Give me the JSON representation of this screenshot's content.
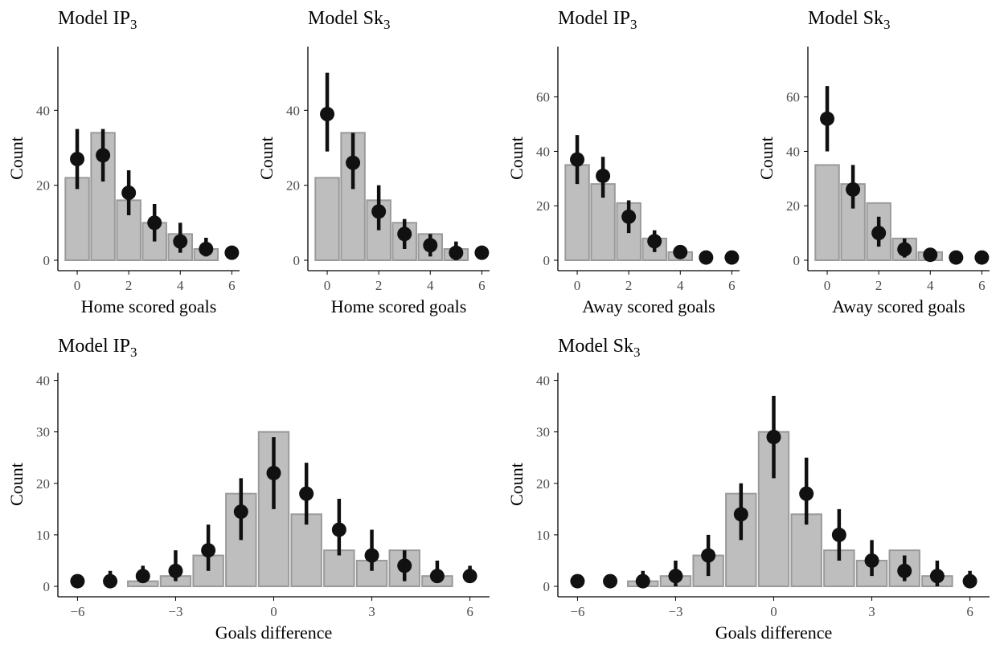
{
  "colors": {
    "bar_fill": "#bebebe",
    "bar_stroke": "#9a9a9a",
    "point": "#111111",
    "tick_text": "#4d4d4d"
  },
  "chart_data": [
    {
      "type": "bar",
      "title": "Model IP",
      "title_subscript": "3",
      "xlabel": "Home scored goals",
      "ylabel": "Count",
      "x_ticks": [
        0,
        2,
        4,
        6
      ],
      "y_ticks": [
        0,
        20,
        40
      ],
      "xlim": [
        -0.75,
        6.3
      ],
      "ylim": [
        0,
        57
      ],
      "bars": {
        "x": [
          0,
          1,
          2,
          3,
          4,
          5
        ],
        "values": [
          22,
          34,
          16,
          10,
          7,
          3
        ]
      },
      "points": {
        "x": [
          0,
          1,
          2,
          3,
          4,
          5,
          6
        ],
        "values": [
          27,
          28,
          18,
          10,
          5,
          3,
          2
        ],
        "lower": [
          19,
          21,
          12,
          5,
          2,
          1,
          2
        ],
        "upper": [
          35,
          35,
          24,
          15,
          10,
          6,
          2
        ]
      }
    },
    {
      "type": "bar",
      "title": "Model Sk",
      "title_subscript": "3",
      "xlabel": "Home scored goals",
      "ylabel": "Count",
      "x_ticks": [
        0,
        2,
        4,
        6
      ],
      "y_ticks": [
        0,
        20,
        40
      ],
      "xlim": [
        -0.75,
        6.3
      ],
      "ylim": [
        0,
        57
      ],
      "bars": {
        "x": [
          0,
          1,
          2,
          3,
          4,
          5
        ],
        "values": [
          22,
          34,
          16,
          10,
          7,
          3
        ]
      },
      "points": {
        "x": [
          0,
          1,
          2,
          3,
          4,
          5,
          6
        ],
        "values": [
          39,
          26,
          13,
          7,
          4,
          2,
          2
        ],
        "lower": [
          29,
          19,
          8,
          3,
          1,
          0,
          2
        ],
        "upper": [
          50,
          34,
          20,
          11,
          7,
          5,
          2
        ]
      }
    },
    {
      "type": "bar",
      "title": "Model IP",
      "title_subscript": "3",
      "xlabel": "Away scored goals",
      "ylabel": "Count",
      "x_ticks": [
        0,
        2,
        4,
        6
      ],
      "y_ticks": [
        0,
        20,
        40,
        60
      ],
      "xlim": [
        -0.75,
        6.3
      ],
      "ylim": [
        0,
        78.5
      ],
      "bars": {
        "x": [
          0,
          1,
          2,
          3,
          4
        ],
        "values": [
          35,
          28,
          21,
          8,
          3
        ]
      },
      "points": {
        "x": [
          0,
          1,
          2,
          3,
          4,
          5,
          6
        ],
        "values": [
          37,
          31,
          16,
          7,
          3,
          1,
          1
        ],
        "lower": [
          28,
          23,
          10,
          3,
          1,
          1,
          1
        ],
        "upper": [
          46,
          38,
          22,
          11,
          5,
          1,
          1
        ]
      }
    },
    {
      "type": "bar",
      "title": "Model Sk",
      "title_subscript": "3",
      "xlabel": "Away scored goals",
      "ylabel": "Count",
      "x_ticks": [
        0,
        2,
        4,
        6
      ],
      "y_ticks": [
        0,
        20,
        40,
        60
      ],
      "xlim": [
        -0.75,
        6.3
      ],
      "ylim": [
        0,
        78.5
      ],
      "bars": {
        "x": [
          0,
          1,
          2,
          3,
          4
        ],
        "values": [
          35,
          28,
          21,
          8,
          3
        ]
      },
      "points": {
        "x": [
          0,
          1,
          2,
          3,
          4,
          5,
          6
        ],
        "values": [
          52,
          26,
          10,
          4,
          2,
          1,
          1
        ],
        "lower": [
          40,
          19,
          5,
          1,
          1,
          1,
          1
        ],
        "upper": [
          64,
          35,
          16,
          8,
          4,
          1,
          1
        ]
      }
    },
    {
      "type": "bar",
      "title": "Model IP",
      "title_subscript": "3",
      "xlabel": "Goals difference",
      "ylabel": "Count",
      "x_ticks": [
        -6,
        -3,
        0,
        3,
        6
      ],
      "x_tick_labels": [
        "−6",
        "−3",
        "0",
        "3",
        "6"
      ],
      "y_ticks": [
        0,
        10,
        20,
        30,
        40
      ],
      "xlim": [
        -6.6,
        6.6
      ],
      "ylim": [
        0,
        41.5
      ],
      "bars": {
        "x": [
          -4,
          -3,
          -2,
          -1,
          0,
          1,
          2,
          3,
          4,
          5
        ],
        "values": [
          1,
          2,
          6,
          18,
          30,
          14,
          7,
          5,
          7,
          2
        ]
      },
      "points": {
        "x": [
          -6,
          -5,
          -4,
          -3,
          -2,
          -1,
          0,
          1,
          2,
          3,
          4,
          5,
          6
        ],
        "values": [
          1,
          1,
          2,
          3,
          7,
          14.5,
          22,
          18,
          11,
          6,
          4,
          2,
          2
        ],
        "lower": [
          1,
          0,
          1,
          1,
          3,
          9,
          15,
          12,
          6,
          3,
          1,
          1,
          1
        ],
        "upper": [
          1,
          3,
          4,
          7,
          12,
          21,
          29,
          24,
          17,
          11,
          7,
          5,
          4
        ]
      }
    },
    {
      "type": "bar",
      "title": "Model Sk",
      "title_subscript": "3",
      "xlabel": "Goals difference",
      "ylabel": "Count",
      "x_ticks": [
        -6,
        -3,
        0,
        3,
        6
      ],
      "x_tick_labels": [
        "−6",
        "−3",
        "0",
        "3",
        "6"
      ],
      "y_ticks": [
        0,
        10,
        20,
        30,
        40
      ],
      "xlim": [
        -6.6,
        6.6
      ],
      "ylim": [
        0,
        41.5
      ],
      "bars": {
        "x": [
          -4,
          -3,
          -2,
          -1,
          0,
          1,
          2,
          3,
          4,
          5
        ],
        "values": [
          1,
          2,
          6,
          18,
          30,
          14,
          7,
          5,
          7,
          2
        ]
      },
      "points": {
        "x": [
          -6,
          -5,
          -4,
          -3,
          -2,
          -1,
          0,
          1,
          2,
          3,
          4,
          5,
          6
        ],
        "values": [
          1,
          1,
          1,
          2,
          6,
          14,
          29,
          18,
          10,
          5,
          3,
          2,
          1
        ],
        "lower": [
          1,
          1,
          0,
          0,
          2,
          9,
          21,
          12,
          5,
          2,
          1,
          0,
          0
        ],
        "upper": [
          1,
          1,
          3,
          5,
          10,
          20,
          37,
          25,
          15,
          9,
          6,
          5,
          3
        ]
      }
    }
  ]
}
